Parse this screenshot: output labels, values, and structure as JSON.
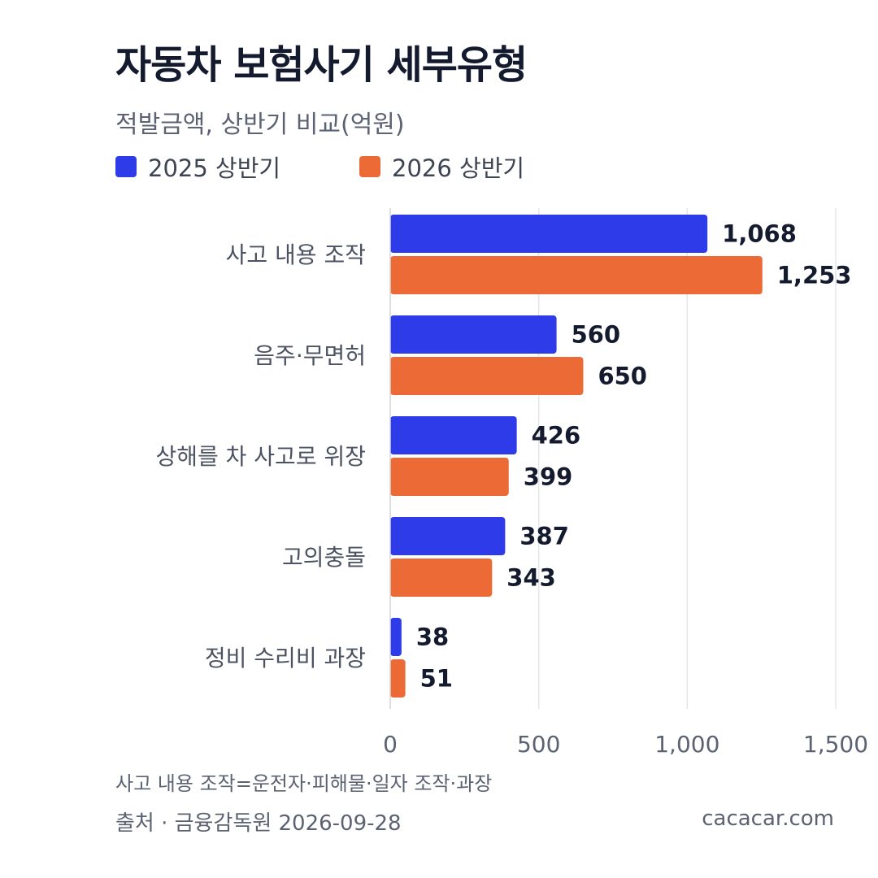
{
  "title": "자동차 보험사기 세부유형",
  "subtitle": "적발금액, 상반기 비교(억원)",
  "colors": {
    "series_2025": "#2d3be8",
    "series_2026": "#ec6a35"
  },
  "chart_data": {
    "type": "bar",
    "orientation": "horizontal",
    "categories": [
      "사고 내용 조작",
      "음주·무면허",
      "상해를 차 사고로 위장",
      "고의충돌",
      "정비 수리비 과장"
    ],
    "series": [
      {
        "name": "2025 상반기",
        "values": [
          1068,
          560,
          426,
          387,
          38
        ],
        "labels": [
          "1,068",
          "560",
          "426",
          "387",
          "38"
        ]
      },
      {
        "name": "2026 상반기",
        "values": [
          1253,
          650,
          399,
          343,
          51
        ],
        "labels": [
          "1,253",
          "650",
          "399",
          "343",
          "51"
        ]
      }
    ],
    "xlim": [
      0,
      1500
    ],
    "xticks": [
      0,
      500,
      1000,
      1500
    ],
    "xtick_labels": [
      "0",
      "500",
      "1,000",
      "1,500"
    ],
    "grid": true,
    "legend": "top-left"
  },
  "footnote": "사고 내용 조작=운전자·피해물·일자 조작·과장",
  "source": "출처 · 금융감독원 2026-09-28",
  "site": "cacacar.com"
}
